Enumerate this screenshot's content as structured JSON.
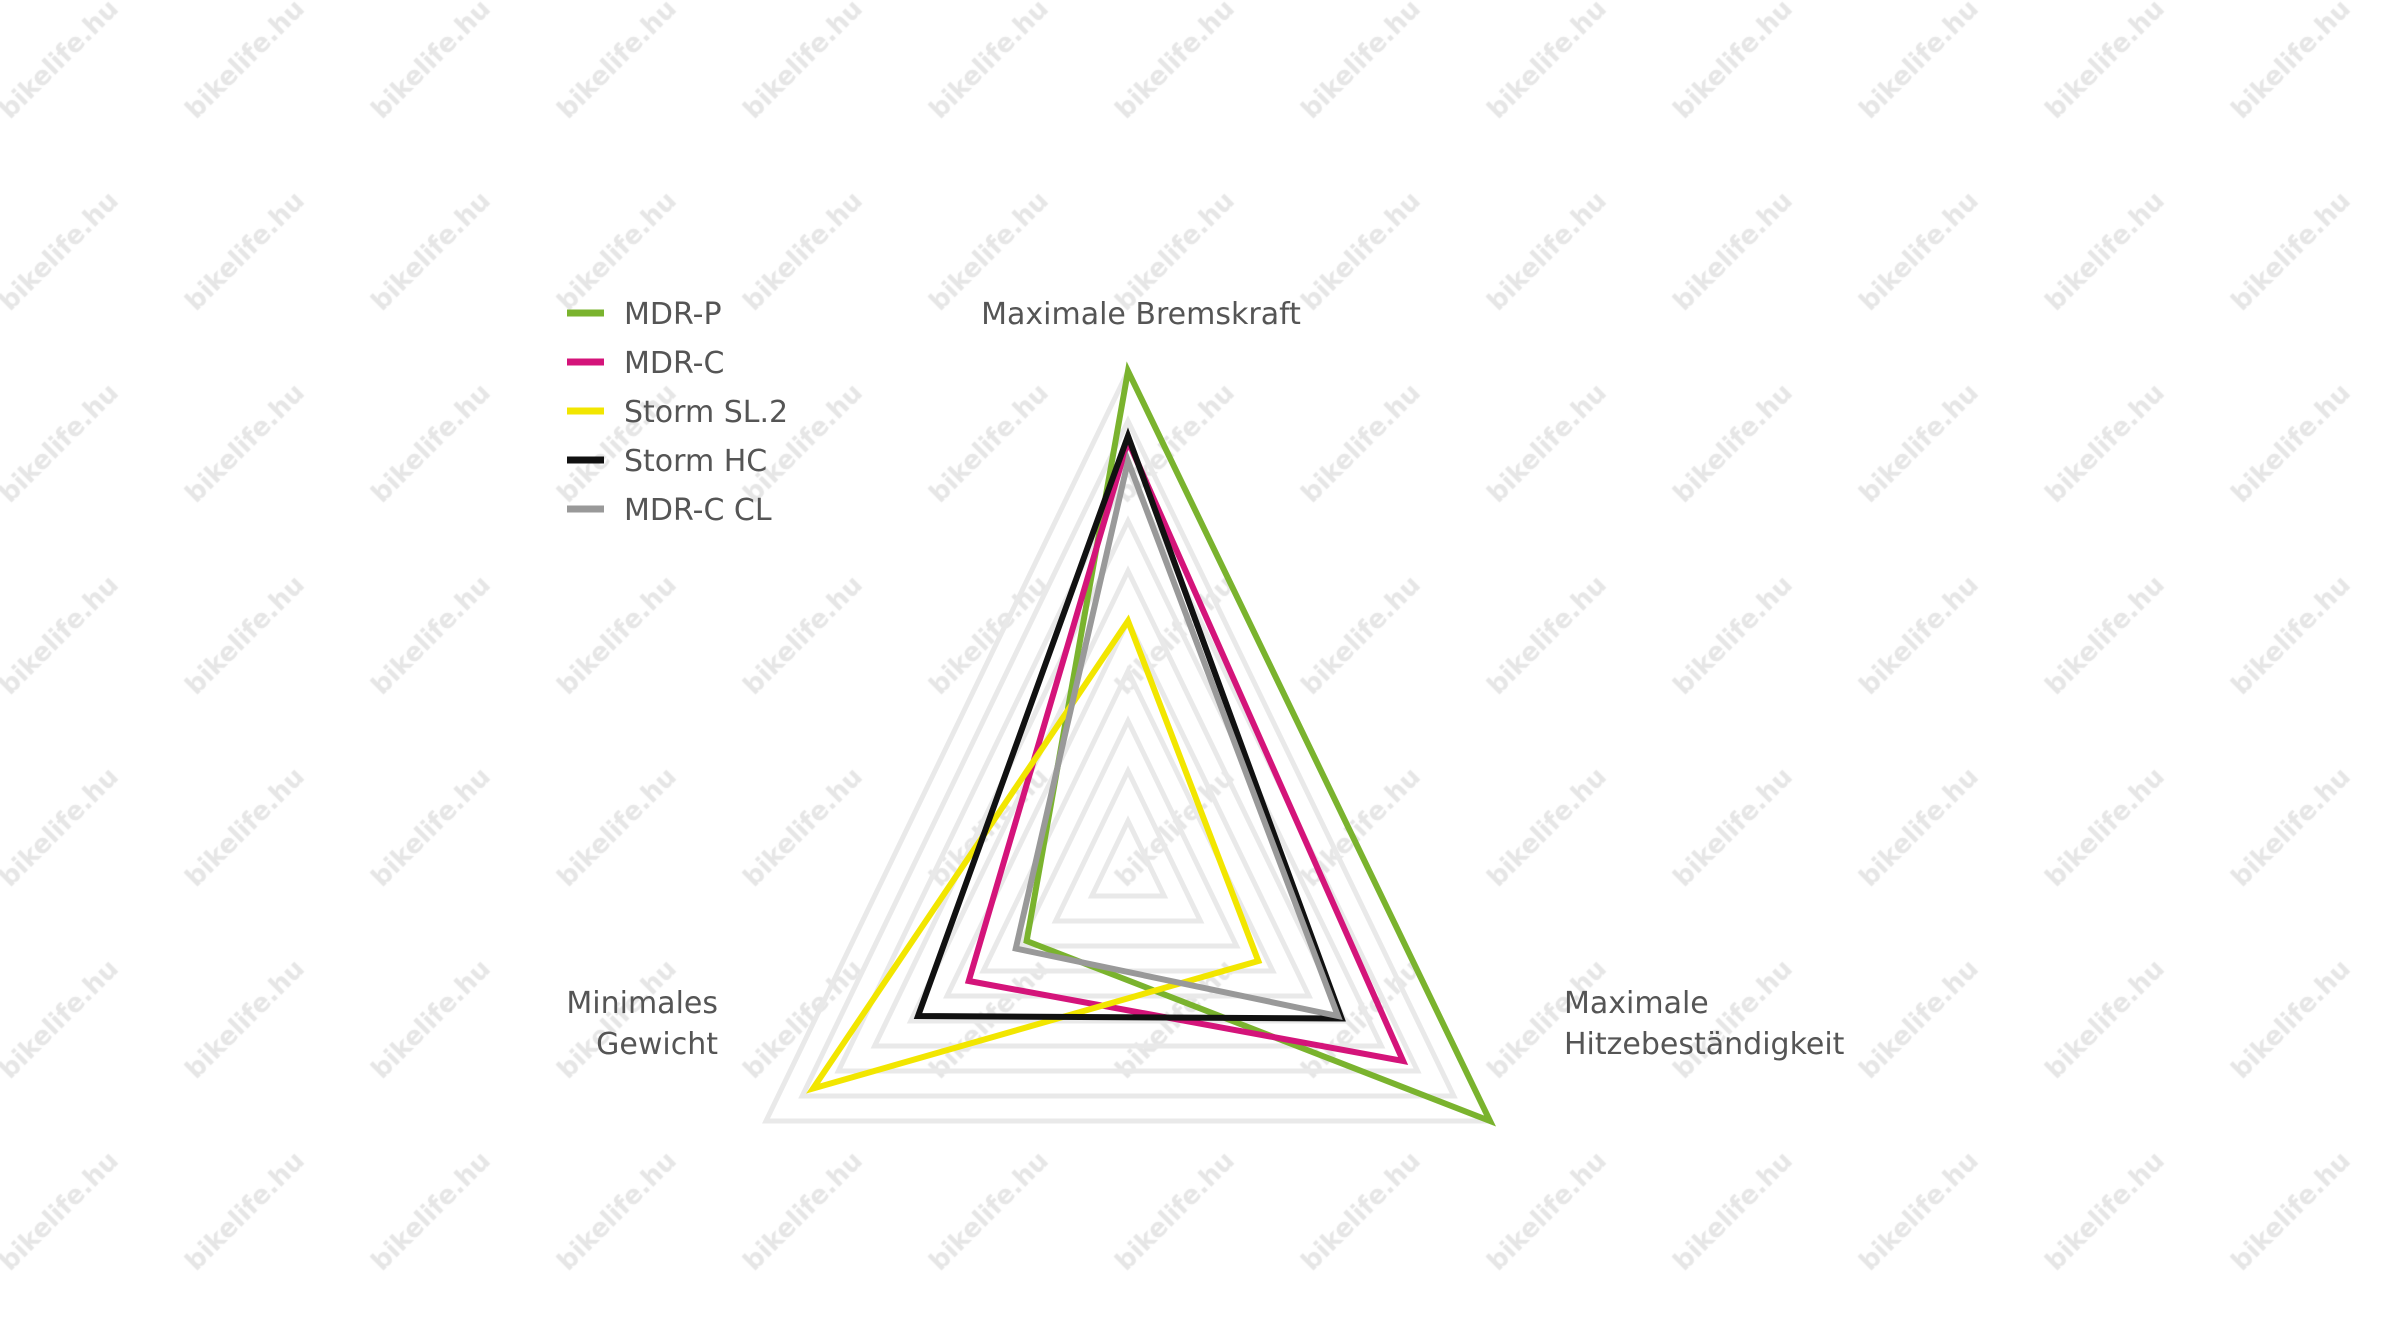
{
  "watermark": "bikelife.hu",
  "chart_data": {
    "type": "radar",
    "axes": [
      "Maximale Bremskraft",
      "Maximale Hitzebeständigkeit",
      "Minimales Gewicht"
    ],
    "axis_label_lines": {
      "top": [
        "Maximale Bremskraft"
      ],
      "right": [
        "Maximale",
        "Hitzebeständigkeit"
      ],
      "left": [
        "Minimales",
        "Gewicht"
      ]
    },
    "range": [
      0,
      1
    ],
    "grid_levels": 10,
    "grid": true,
    "legend_position": "top-left",
    "series": [
      {
        "name": "MDR-P",
        "color": "#7ab32e",
        "values": [
          1.0,
          1.0,
          0.28
        ]
      },
      {
        "name": "MDR-C",
        "color": "#d4147a",
        "values": [
          0.86,
          0.76,
          0.44
        ]
      },
      {
        "name": "Storm SL.2",
        "color": "#f2e600",
        "values": [
          0.5,
          0.36,
          0.87
        ]
      },
      {
        "name": "Storm HC",
        "color": "#111111",
        "values": [
          0.87,
          0.59,
          0.58
        ]
      },
      {
        "name": "MDR-C CL",
        "color": "#999999",
        "values": [
          0.82,
          0.58,
          0.31
        ]
      }
    ]
  }
}
